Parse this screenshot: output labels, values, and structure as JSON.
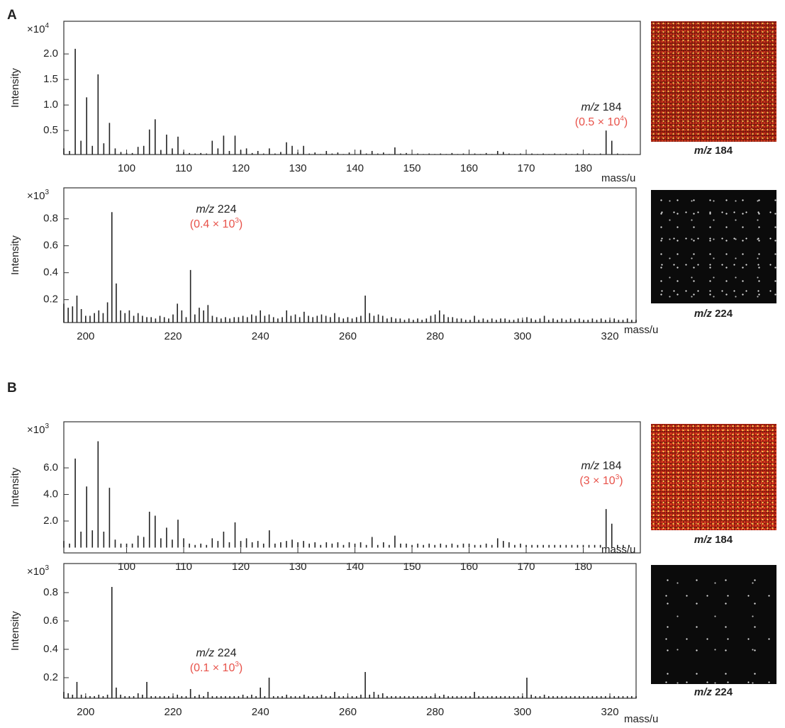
{
  "panels": [
    {
      "label": "A"
    },
    {
      "label": "B"
    }
  ],
  "chart_data": [
    {
      "type": "bar",
      "color": "#222222",
      "ylabel": "Intensity",
      "xlabel": "mass/u",
      "y_multiplier": {
        "base": "×10",
        "exponent": "4"
      },
      "annotation": {
        "prefix": "m/z",
        "mass": "184",
        "note": "(0.5 × 10",
        "note_exponent": "4",
        "note_close": ")"
      },
      "image_label": {
        "prefix": "m/z",
        "mass": "184"
      },
      "xlim": [
        89,
        190
      ],
      "xticks": [
        100,
        110,
        120,
        130,
        140,
        150,
        160,
        170,
        180
      ],
      "ylim": [
        0.03,
        2.64
      ],
      "yticks": [
        0.5,
        {
          "value": 1,
          "label": "1.0"
        },
        1.5,
        {
          "value": 2,
          "label": "2.0"
        }
      ],
      "x": [
        89,
        90,
        91,
        92,
        93,
        94,
        95,
        96,
        97,
        98,
        99,
        100,
        101,
        102,
        103,
        104,
        105,
        106,
        107,
        108,
        109,
        110,
        111,
        112,
        113,
        114,
        115,
        116,
        117,
        118,
        119,
        120,
        121,
        122,
        123,
        124,
        125,
        126,
        127,
        128,
        129,
        130,
        131,
        132,
        133,
        134,
        135,
        136,
        137,
        138,
        139,
        140,
        141,
        142,
        143,
        144,
        145,
        146,
        147,
        148,
        149,
        150,
        151,
        152,
        153,
        154,
        155,
        156,
        157,
        158,
        159,
        160,
        161,
        162,
        163,
        164,
        165,
        166,
        167,
        168,
        169,
        170,
        171,
        172,
        173,
        174,
        175,
        176,
        177,
        178,
        179,
        180,
        181,
        182,
        183,
        184,
        185,
        186,
        187,
        188
      ],
      "values": [
        0.15,
        0.1,
        2.1,
        0.3,
        1.15,
        0.2,
        1.6,
        0.25,
        0.65,
        0.15,
        0.08,
        0.06,
        0.06,
        0.18,
        0.2,
        0.52,
        0.72,
        0.12,
        0.42,
        0.15,
        0.38,
        0.08,
        0.06,
        0.05,
        0.06,
        0.05,
        0.3,
        0.15,
        0.4,
        0.1,
        0.4,
        0.12,
        0.15,
        0.06,
        0.1,
        0.05,
        0.15,
        0.05,
        0.08,
        0.27,
        0.2,
        0.07,
        0.2,
        0.05,
        0.07,
        0.04,
        0.1,
        0.05,
        0.07,
        0.04,
        0.07,
        0.04,
        0.12,
        0.05,
        0.1,
        0.05,
        0.07,
        0.04,
        0.17,
        0.05,
        0.06,
        0.04,
        0.05,
        0.04,
        0.05,
        0.04,
        0.05,
        0.04,
        0.06,
        0.04,
        0.05,
        0.04,
        0.05,
        0.04,
        0.06,
        0.04,
        0.1,
        0.08,
        0.05,
        0.04,
        0.05,
        0.04,
        0.05,
        0.04,
        0.05,
        0.04,
        0.05,
        0.04,
        0.05,
        0.04,
        0.05,
        0.04,
        0.05,
        0.04,
        0.05,
        0.5,
        0.3,
        0.05,
        0.04,
        0.04
      ]
    },
    {
      "type": "bar",
      "color": "#222222",
      "ylabel": "Intensity",
      "xlabel": "mass/u",
      "y_multiplier": {
        "base": "×10",
        "exponent": "3"
      },
      "annotation": {
        "prefix": "m/z",
        "mass": "224",
        "note": "(0.4 × 10",
        "note_exponent": "3",
        "note_close": ")"
      },
      "image_label": {
        "prefix": "m/z",
        "mass": "224"
      },
      "xlim": [
        195,
        326
      ],
      "xticks": [
        200,
        220,
        240,
        260,
        280,
        300,
        320
      ],
      "ylim": [
        0.03,
        1.03
      ],
      "yticks": [
        0.2,
        0.4,
        0.6,
        0.8
      ],
      "x": [
        195,
        196,
        197,
        198,
        199,
        200,
        201,
        202,
        203,
        204,
        205,
        206,
        207,
        208,
        209,
        210,
        211,
        212,
        213,
        214,
        215,
        216,
        217,
        218,
        219,
        220,
        221,
        222,
        223,
        224,
        225,
        226,
        227,
        228,
        229,
        230,
        231,
        232,
        233,
        234,
        235,
        236,
        237,
        238,
        239,
        240,
        241,
        242,
        243,
        244,
        245,
        246,
        247,
        248,
        249,
        250,
        251,
        252,
        253,
        254,
        255,
        256,
        257,
        258,
        259,
        260,
        261,
        262,
        263,
        264,
        265,
        266,
        267,
        268,
        269,
        270,
        271,
        272,
        273,
        274,
        275,
        276,
        277,
        278,
        279,
        280,
        281,
        282,
        283,
        284,
        285,
        286,
        287,
        288,
        289,
        290,
        291,
        292,
        293,
        294,
        295,
        296,
        297,
        298,
        299,
        300,
        301,
        302,
        303,
        304,
        305,
        306,
        307,
        308,
        309,
        310,
        311,
        312,
        313,
        314,
        315,
        316,
        317,
        318,
        319,
        320,
        321,
        322,
        323,
        324,
        325,
        326
      ],
      "values": [
        0.17,
        0.14,
        0.15,
        0.23,
        0.13,
        0.08,
        0.08,
        0.1,
        0.12,
        0.1,
        0.18,
        0.85,
        0.32,
        0.12,
        0.1,
        0.12,
        0.08,
        0.1,
        0.08,
        0.07,
        0.07,
        0.06,
        0.08,
        0.07,
        0.06,
        0.09,
        0.17,
        0.12,
        0.07,
        0.42,
        0.09,
        0.14,
        0.12,
        0.16,
        0.08,
        0.07,
        0.06,
        0.07,
        0.06,
        0.07,
        0.07,
        0.08,
        0.07,
        0.09,
        0.08,
        0.12,
        0.08,
        0.09,
        0.07,
        0.06,
        0.07,
        0.12,
        0.08,
        0.09,
        0.07,
        0.11,
        0.08,
        0.07,
        0.08,
        0.09,
        0.08,
        0.07,
        0.1,
        0.07,
        0.06,
        0.07,
        0.06,
        0.07,
        0.08,
        0.23,
        0.1,
        0.08,
        0.09,
        0.08,
        0.06,
        0.07,
        0.06,
        0.06,
        0.05,
        0.06,
        0.05,
        0.06,
        0.05,
        0.06,
        0.08,
        0.09,
        0.12,
        0.09,
        0.07,
        0.07,
        0.06,
        0.06,
        0.05,
        0.05,
        0.08,
        0.05,
        0.06,
        0.05,
        0.06,
        0.05,
        0.06,
        0.06,
        0.05,
        0.05,
        0.06,
        0.05,
        0.07,
        0.06,
        0.05,
        0.06,
        0.08,
        0.05,
        0.06,
        0.05,
        0.06,
        0.05,
        0.06,
        0.05,
        0.06,
        0.05,
        0.05,
        0.06,
        0.05,
        0.06,
        0.05,
        0.05,
        0.06,
        0.05,
        0.05,
        0.06,
        0.05,
        0.05
      ]
    },
    {
      "type": "bar",
      "color": "#222222",
      "ylabel": "Intensity",
      "xlabel": "mass/u",
      "y_multiplier": {
        "base": "×10",
        "exponent": "3"
      },
      "annotation": {
        "prefix": "m/z",
        "mass": "184",
        "note": "(3 × 10",
        "note_exponent": "3",
        "note_close": ")"
      },
      "image_label": {
        "prefix": "m/z",
        "mass": "184"
      },
      "xlim": [
        89,
        190
      ],
      "xticks": [
        100,
        110,
        120,
        130,
        140,
        150,
        160,
        170,
        180
      ],
      "ylim": [
        -0.4,
        9.47
      ],
      "yticks": [
        {
          "value": 2,
          "label": "2.0"
        },
        {
          "value": 4,
          "label": "4.0"
        },
        {
          "value": 6,
          "label": "6.0"
        }
      ],
      "x": [
        89,
        90,
        91,
        92,
        93,
        94,
        95,
        96,
        97,
        98,
        99,
        100,
        101,
        102,
        103,
        104,
        105,
        106,
        107,
        108,
        109,
        110,
        111,
        112,
        113,
        114,
        115,
        116,
        117,
        118,
        119,
        120,
        121,
        122,
        123,
        124,
        125,
        126,
        127,
        128,
        129,
        130,
        131,
        132,
        133,
        134,
        135,
        136,
        137,
        138,
        139,
        140,
        141,
        142,
        143,
        144,
        145,
        146,
        147,
        148,
        149,
        150,
        151,
        152,
        153,
        154,
        155,
        156,
        157,
        158,
        159,
        160,
        161,
        162,
        163,
        164,
        165,
        166,
        167,
        168,
        169,
        170,
        171,
        172,
        173,
        174,
        175,
        176,
        177,
        178,
        179,
        180,
        181,
        182,
        183,
        184,
        185,
        186,
        187,
        188
      ],
      "values": [
        0.5,
        0.3,
        6.7,
        1.2,
        4.6,
        1.3,
        8,
        1.2,
        4.5,
        0.6,
        0.3,
        0.3,
        0.3,
        0.9,
        0.8,
        2.7,
        2.4,
        0.7,
        1.5,
        0.6,
        2.1,
        0.7,
        0.3,
        0.2,
        0.3,
        0.2,
        0.7,
        0.5,
        1.2,
        0.4,
        1.9,
        0.5,
        0.7,
        0.4,
        0.5,
        0.3,
        1.3,
        0.3,
        0.4,
        0.5,
        0.6,
        0.4,
        0.5,
        0.3,
        0.4,
        0.2,
        0.4,
        0.3,
        0.4,
        0.2,
        0.4,
        0.3,
        0.4,
        0.2,
        0.8,
        0.2,
        0.4,
        0.2,
        0.9,
        0.3,
        0.3,
        0.2,
        0.3,
        0.2,
        0.3,
        0.2,
        0.3,
        0.2,
        0.3,
        0.2,
        0.3,
        0.3,
        0.2,
        0.2,
        0.3,
        0.2,
        0.7,
        0.5,
        0.4,
        0.2,
        0.3,
        0.2,
        0.2,
        0.2,
        0.2,
        0.2,
        0.2,
        0.2,
        0.2,
        0.2,
        0.2,
        0.2,
        0.2,
        0.2,
        0.2,
        2.9,
        1.8,
        0.2,
        0.2,
        0.2
      ]
    },
    {
      "type": "bar",
      "color": "#222222",
      "ylabel": "Intensity",
      "xlabel": "mass/u",
      "y_multiplier": {
        "base": "×10",
        "exponent": "3"
      },
      "annotation": {
        "prefix": "m/z",
        "mass": "224",
        "note": "(0.1 × 10",
        "note_exponent": "3",
        "note_close": ")"
      },
      "image_label": {
        "prefix": "m/z",
        "mass": "224"
      },
      "xlim": [
        195,
        326
      ],
      "xticks": [
        200,
        220,
        240,
        260,
        280,
        300,
        320
      ],
      "ylim": [
        0.055,
        1.005
      ],
      "yticks": [
        0.2,
        0.4,
        0.6,
        0.8
      ],
      "x": [
        195,
        196,
        197,
        198,
        199,
        200,
        201,
        202,
        203,
        204,
        205,
        206,
        207,
        208,
        209,
        210,
        211,
        212,
        213,
        214,
        215,
        216,
        217,
        218,
        219,
        220,
        221,
        222,
        223,
        224,
        225,
        226,
        227,
        228,
        229,
        230,
        231,
        232,
        233,
        234,
        235,
        236,
        237,
        238,
        239,
        240,
        241,
        242,
        243,
        244,
        245,
        246,
        247,
        248,
        249,
        250,
        251,
        252,
        253,
        254,
        255,
        256,
        257,
        258,
        259,
        260,
        261,
        262,
        263,
        264,
        265,
        266,
        267,
        268,
        269,
        270,
        271,
        272,
        273,
        274,
        275,
        276,
        277,
        278,
        279,
        280,
        281,
        282,
        283,
        284,
        285,
        286,
        287,
        288,
        289,
        290,
        291,
        292,
        293,
        294,
        295,
        296,
        297,
        298,
        299,
        300,
        301,
        302,
        303,
        304,
        305,
        306,
        307,
        308,
        309,
        310,
        311,
        312,
        313,
        314,
        315,
        316,
        317,
        318,
        319,
        320,
        321,
        322,
        323,
        324,
        325,
        326
      ],
      "values": [
        0.1,
        0.09,
        0.08,
        0.17,
        0.08,
        0.07,
        0.07,
        0.07,
        0.08,
        0.07,
        0.08,
        0.84,
        0.13,
        0.08,
        0.07,
        0.07,
        0.07,
        0.09,
        0.08,
        0.17,
        0.07,
        0.07,
        0.07,
        0.07,
        0.07,
        0.07,
        0.08,
        0.07,
        0.07,
        0.12,
        0.07,
        0.08,
        0.07,
        0.1,
        0.07,
        0.07,
        0.07,
        0.07,
        0.07,
        0.07,
        0.07,
        0.08,
        0.07,
        0.08,
        0.07,
        0.13,
        0.07,
        0.2,
        0.07,
        0.07,
        0.07,
        0.08,
        0.07,
        0.07,
        0.07,
        0.08,
        0.07,
        0.07,
        0.07,
        0.08,
        0.07,
        0.07,
        0.1,
        0.07,
        0.07,
        0.07,
        0.07,
        0.07,
        0.08,
        0.24,
        0.08,
        0.1,
        0.08,
        0.09,
        0.07,
        0.07,
        0.07,
        0.07,
        0.07,
        0.07,
        0.07,
        0.07,
        0.07,
        0.07,
        0.07,
        0.08,
        0.07,
        0.08,
        0.07,
        0.07,
        0.07,
        0.07,
        0.07,
        0.07,
        0.1,
        0.07,
        0.07,
        0.07,
        0.07,
        0.07,
        0.07,
        0.07,
        0.07,
        0.07,
        0.07,
        0.07,
        0.2,
        0.08,
        0.07,
        0.07,
        0.08,
        0.07,
        0.07,
        0.07,
        0.07,
        0.07,
        0.07,
        0.07,
        0.07,
        0.07,
        0.07,
        0.07,
        0.07,
        0.07,
        0.07,
        0.07,
        0.07,
        0.07,
        0.07,
        0.07,
        0.07,
        0.07
      ]
    }
  ]
}
